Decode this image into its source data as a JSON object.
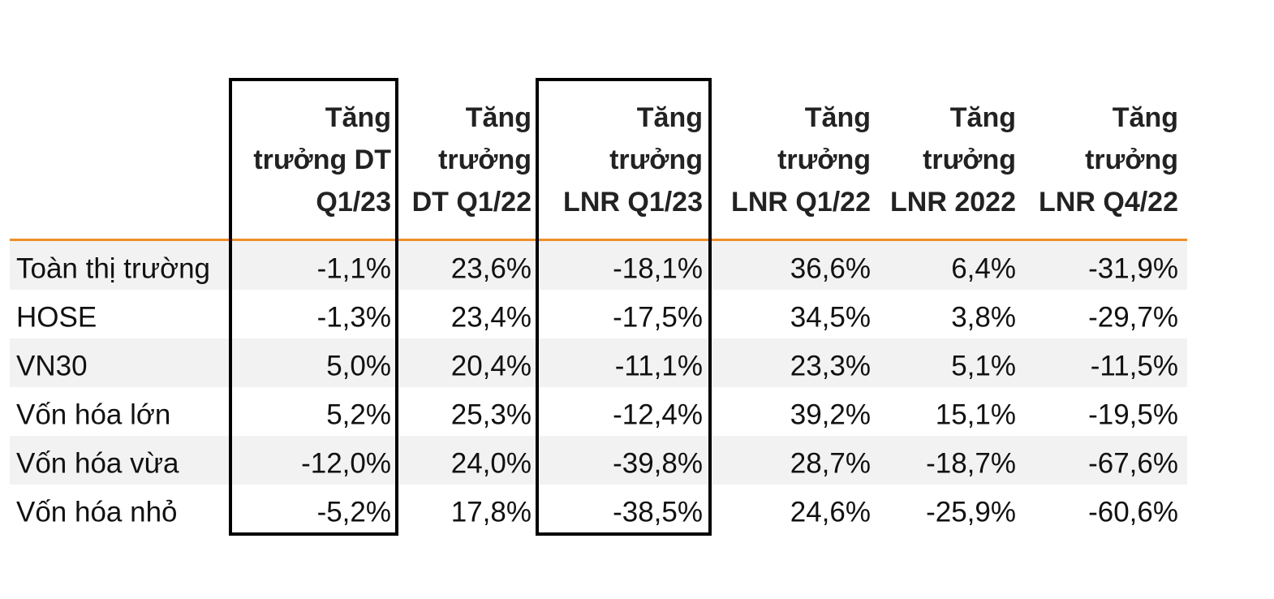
{
  "table": {
    "header": [
      [
        "Tăng",
        "trưởng DT",
        "Q1/23"
      ],
      [
        "Tăng",
        "trưởng",
        "DT Q1/22"
      ],
      [
        "Tăng",
        "trưởng",
        "LNR Q1/23"
      ],
      [
        "Tăng",
        "trưởng",
        "LNR Q1/22"
      ],
      [
        "Tăng",
        "trưởng",
        "LNR 2022"
      ],
      [
        "Tăng",
        "trưởng",
        "LNR Q4/22"
      ]
    ],
    "rows": [
      [
        "Toàn thị trường",
        "-1,1%",
        "23,6%",
        "-18,1%",
        "36,6%",
        "6,4%",
        "-31,9%"
      ],
      [
        "HOSE",
        "-1,3%",
        "23,4%",
        "-17,5%",
        "34,5%",
        "3,8%",
        "-29,7%"
      ],
      [
        "VN30",
        "5,0%",
        "20,4%",
        "-11,1%",
        "23,3%",
        "5,1%",
        "-11,5%"
      ],
      [
        "Vốn hóa lớn",
        "5,2%",
        "25,3%",
        "-12,4%",
        "39,2%",
        "15,1%",
        "-19,5%"
      ],
      [
        "Vốn hóa vừa",
        "-12,0%",
        "24,0%",
        "-39,8%",
        "28,7%",
        "-18,7%",
        "-67,6%"
      ],
      [
        "Vốn hóa nhỏ",
        "-5,2%",
        "17,8%",
        "-38,5%",
        "24,6%",
        "-25,9%",
        "-60,6%"
      ]
    ]
  }
}
